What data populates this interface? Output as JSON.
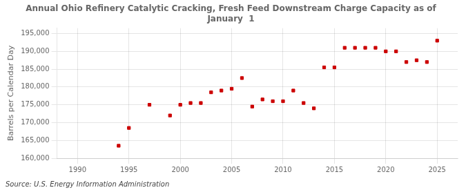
{
  "chart_data": {
    "type": "scatter",
    "title": [
      "Annual Ohio Refinery Catalytic Cracking, Fresh Feed Downstream Charge Capacity as of",
      "January  1"
    ],
    "ylabel": "Barrels per Calendar Day",
    "annotations": [
      "Source: U.S. Energy Information Administration"
    ],
    "x": [
      1994,
      1995,
      1997,
      1999,
      2000,
      2001,
      2002,
      2003,
      2004,
      2005,
      2006,
      2007,
      2008,
      2009,
      2010,
      2011,
      2012,
      2013,
      2014,
      2015,
      2016,
      2017,
      2018,
      2019,
      2020,
      2021,
      2022,
      2023,
      2024,
      2025
    ],
    "values": [
      163500,
      168500,
      175000,
      172000,
      175000,
      175500,
      175500,
      178500,
      179000,
      179500,
      182500,
      174500,
      176500,
      176000,
      176000,
      179000,
      175500,
      174000,
      185500,
      185500,
      191000,
      191000,
      191000,
      191000,
      190000,
      190000,
      187000,
      187500,
      187000,
      193000
    ],
    "color": "#cc0000",
    "marker": "square",
    "xlim": [
      1988,
      2027
    ],
    "xticks": [
      1990,
      1995,
      2000,
      2005,
      2010,
      2015,
      2020,
      2025
    ],
    "ylim": [
      160000,
      196500
    ],
    "yticks": [
      {
        "value": 160000,
        "label": "160,000"
      },
      {
        "value": 165000,
        "label": "165,000"
      },
      {
        "value": 170000,
        "label": "170,000"
      },
      {
        "value": 175000,
        "label": "175,000"
      },
      {
        "value": 180000,
        "label": "180,000"
      },
      {
        "value": 185000,
        "label": "185,000"
      },
      {
        "value": 190000,
        "label": "190,000"
      },
      {
        "value": 195000,
        "label": "195,000"
      }
    ],
    "grid": true
  }
}
